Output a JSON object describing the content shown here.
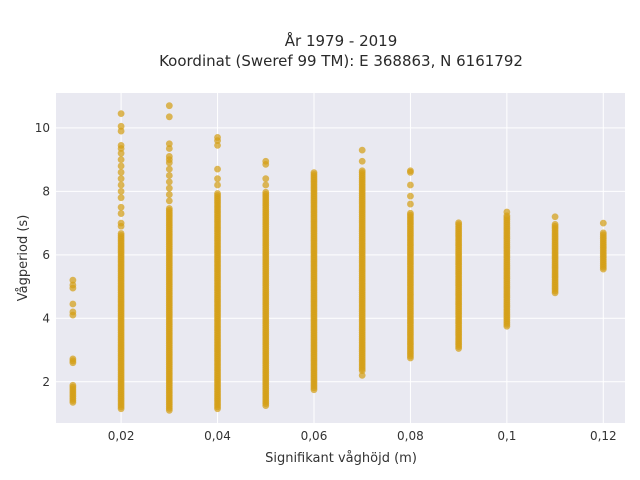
{
  "chart_data": {
    "type": "scatter",
    "title_line1": "År 1979 - 2019",
    "title_line2": "Koordinat (Sweref 99 TM): E 368863, N 6161792",
    "xlabel": "Signifikant våghöjd (m)",
    "ylabel": "Vågperiod (s)",
    "xlim": [
      0.0065,
      0.1245
    ],
    "ylim": [
      0.7,
      11.1
    ],
    "grid": true,
    "x_ticks": [
      0.02,
      0.04,
      0.06,
      0.08,
      0.1,
      0.12
    ],
    "x_tick_labels": [
      "0,02",
      "0,04",
      "0,06",
      "0,08",
      "0,1",
      "0,12"
    ],
    "y_ticks": [
      2,
      4,
      6,
      8,
      10
    ],
    "y_tick_labels": [
      "2",
      "4",
      "6",
      "8",
      "10"
    ],
    "colors": {
      "point": "#D4A017",
      "plot_bg": "#E9E9F1",
      "grid": "#FFFFFF"
    },
    "columns": [
      {
        "x": 0.01,
        "y_ranges": [
          [
            1.35,
            1.9
          ],
          [
            2.6,
            2.75
          ]
        ],
        "y_points": [
          4.1,
          4.2,
          4.45,
          4.95,
          5.05,
          5.2
        ]
      },
      {
        "x": 0.02,
        "y_ranges": [
          [
            1.15,
            6.7
          ]
        ],
        "y_points": [
          6.9,
          7.0,
          7.3,
          7.5,
          7.8,
          8.0,
          8.2,
          8.4,
          8.6,
          8.8,
          9.0,
          9.2,
          9.35,
          9.45,
          9.9,
          10.05,
          10.45
        ]
      },
      {
        "x": 0.03,
        "y_ranges": [
          [
            1.1,
            7.5
          ]
        ],
        "y_points": [
          7.7,
          7.9,
          8.1,
          8.3,
          8.5,
          8.7,
          8.9,
          9.0,
          9.1,
          9.35,
          9.5,
          10.35,
          10.7
        ]
      },
      {
        "x": 0.04,
        "y_ranges": [
          [
            1.15,
            7.95
          ]
        ],
        "y_points": [
          8.2,
          8.4,
          8.7,
          9.45,
          9.6,
          9.7
        ]
      },
      {
        "x": 0.05,
        "y_ranges": [
          [
            1.25,
            8.0
          ]
        ],
        "y_points": [
          8.2,
          8.4,
          8.85,
          8.95
        ]
      },
      {
        "x": 0.06,
        "y_ranges": [
          [
            1.75,
            8.6
          ]
        ],
        "y_points": []
      },
      {
        "x": 0.07,
        "y_ranges": [
          [
            2.35,
            8.65
          ]
        ],
        "y_points": [
          2.2,
          8.95,
          9.3
        ]
      },
      {
        "x": 0.08,
        "y_ranges": [
          [
            2.75,
            7.35
          ]
        ],
        "y_points": [
          7.6,
          7.85,
          8.2,
          8.6,
          8.65
        ]
      },
      {
        "x": 0.09,
        "y_ranges": [
          [
            3.05,
            7.05
          ]
        ],
        "y_points": []
      },
      {
        "x": 0.1,
        "y_ranges": [
          [
            3.75,
            7.25
          ]
        ],
        "y_points": [
          7.35
        ]
      },
      {
        "x": 0.11,
        "y_ranges": [
          [
            4.8,
            7.0
          ]
        ],
        "y_points": [
          7.2
        ]
      },
      {
        "x": 0.12,
        "y_ranges": [
          [
            5.55,
            6.7
          ]
        ],
        "y_points": [
          7.0
        ]
      }
    ]
  }
}
